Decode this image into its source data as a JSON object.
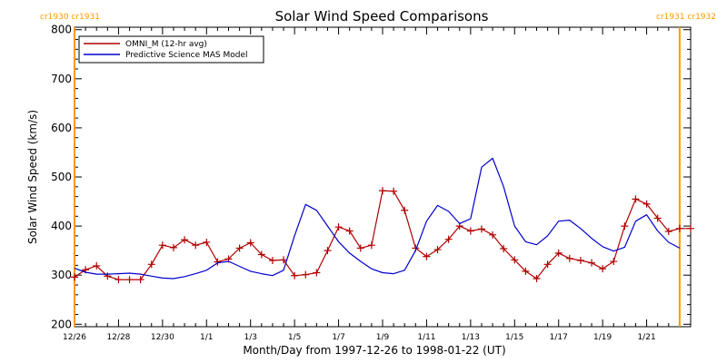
{
  "chart_data": {
    "type": "line",
    "title": "Solar Wind Speed Comparisons",
    "xlabel": "Month/Day from 1997-12-26 to 1998-01-22 (UT)",
    "ylabel": "Solar Wind Speed (km/s)",
    "ylim": [
      195,
      805
    ],
    "yticks": [
      200,
      300,
      400,
      500,
      600,
      700,
      800
    ],
    "xlim": [
      "1997-12-26T00:00",
      "1998-01-23T00:00"
    ],
    "xticks": [
      {
        "date": "1997-12-26",
        "label": "12/26"
      },
      {
        "date": "1997-12-28",
        "label": "12/28"
      },
      {
        "date": "1997-12-30",
        "label": "12/30"
      },
      {
        "date": "1998-01-01",
        "label": "1/1"
      },
      {
        "date": "1998-01-03",
        "label": "1/3"
      },
      {
        "date": "1998-01-05",
        "label": "1/5"
      },
      {
        "date": "1998-01-07",
        "label": "1/7"
      },
      {
        "date": "1998-01-09",
        "label": "1/9"
      },
      {
        "date": "1998-01-11",
        "label": "1/11"
      },
      {
        "date": "1998-01-13",
        "label": "1/13"
      },
      {
        "date": "1998-01-15",
        "label": "1/15"
      },
      {
        "date": "1998-01-17",
        "label": "1/17"
      },
      {
        "date": "1998-01-19",
        "label": "1/19"
      },
      {
        "date": "1998-01-21",
        "label": "1/21"
      }
    ],
    "carrington_markers": [
      {
        "date": "1997-12-26T00:00",
        "label": "cr1930 cr1931",
        "side": "left",
        "color": "#ff9900"
      },
      {
        "date": "1998-01-22T12:00",
        "label": "cr1931 cr1932",
        "side": "right",
        "color": "#ff9900"
      }
    ],
    "legend_position": "top-left",
    "series": [
      {
        "name": "OMNI_M (12-hr avg)",
        "color": "#b00000",
        "marker": "plus",
        "x": [
          "1997-12-26T00:00",
          "1997-12-26T12:00",
          "1997-12-27T00:00",
          "1997-12-27T12:00",
          "1997-12-28T00:00",
          "1997-12-28T12:00",
          "1997-12-29T00:00",
          "1997-12-29T12:00",
          "1997-12-30T00:00",
          "1997-12-30T12:00",
          "1997-12-31T00:00",
          "1997-12-31T12:00",
          "1998-01-01T00:00",
          "1998-01-01T12:00",
          "1998-01-02T00:00",
          "1998-01-02T12:00",
          "1998-01-03T00:00",
          "1998-01-03T12:00",
          "1998-01-04T00:00",
          "1998-01-04T12:00",
          "1998-01-05T00:00",
          "1998-01-05T12:00",
          "1998-01-06T00:00",
          "1998-01-06T12:00",
          "1998-01-07T00:00",
          "1998-01-07T12:00",
          "1998-01-08T00:00",
          "1998-01-08T12:00",
          "1998-01-09T00:00",
          "1998-01-09T12:00",
          "1998-01-10T00:00",
          "1998-01-10T12:00",
          "1998-01-11T00:00",
          "1998-01-11T12:00",
          "1998-01-12T00:00",
          "1998-01-12T12:00",
          "1998-01-13T00:00",
          "1998-01-13T12:00",
          "1998-01-14T00:00",
          "1998-01-14T12:00",
          "1998-01-15T00:00",
          "1998-01-15T12:00",
          "1998-01-16T00:00",
          "1998-01-16T12:00",
          "1998-01-17T00:00",
          "1998-01-17T12:00",
          "1998-01-18T00:00",
          "1998-01-18T12:00",
          "1998-01-19T00:00",
          "1998-01-19T12:00",
          "1998-01-20T00:00",
          "1998-01-20T12:00",
          "1998-01-21T00:00",
          "1998-01-21T12:00",
          "1998-01-22T00:00",
          "1998-01-22T12:00",
          "1998-01-23T00:00"
        ],
        "y": [
          296,
          311,
          319,
          298,
          291,
          291,
          291,
          322,
          361,
          356,
          372,
          361,
          367,
          327,
          333,
          355,
          366,
          342,
          330,
          331,
          299,
          301,
          305,
          350,
          398,
          390,
          355,
          361,
          472,
          471,
          432,
          355,
          338,
          352,
          373,
          400,
          390,
          394,
          382,
          354,
          331,
          308,
          293,
          322,
          345,
          334,
          330,
          325,
          313,
          328,
          400,
          455,
          445,
          416,
          389,
          395,
          395
        ]
      },
      {
        "name": "Predictive Science MAS Model",
        "color": "#0000cc",
        "marker": "none",
        "x": [
          "1997-12-26T00:00",
          "1997-12-26T12:00",
          "1997-12-27T00:00",
          "1997-12-27T12:00",
          "1997-12-28T00:00",
          "1997-12-28T12:00",
          "1997-12-29T00:00",
          "1997-12-29T12:00",
          "1997-12-30T00:00",
          "1997-12-30T12:00",
          "1997-12-31T00:00",
          "1997-12-31T12:00",
          "1998-01-01T00:00",
          "1998-01-01T12:00",
          "1998-01-02T00:00",
          "1998-01-02T12:00",
          "1998-01-03T00:00",
          "1998-01-03T12:00",
          "1998-01-04T00:00",
          "1998-01-04T12:00",
          "1998-01-05T00:00",
          "1998-01-05T12:00",
          "1998-01-06T00:00",
          "1998-01-06T12:00",
          "1998-01-07T00:00",
          "1998-01-07T12:00",
          "1998-01-08T00:00",
          "1998-01-08T12:00",
          "1998-01-09T00:00",
          "1998-01-09T12:00",
          "1998-01-10T00:00",
          "1998-01-10T12:00",
          "1998-01-11T00:00",
          "1998-01-11T12:00",
          "1998-01-12T00:00",
          "1998-01-12T12:00",
          "1998-01-13T00:00",
          "1998-01-13T12:00",
          "1998-01-14T00:00",
          "1998-01-14T12:00",
          "1998-01-15T00:00",
          "1998-01-15T12:00",
          "1998-01-16T00:00",
          "1998-01-16T12:00",
          "1998-01-17T00:00",
          "1998-01-17T12:00",
          "1998-01-18T00:00",
          "1998-01-18T12:00",
          "1998-01-19T00:00",
          "1998-01-19T12:00",
          "1998-01-20T00:00",
          "1998-01-20T12:00",
          "1998-01-21T00:00",
          "1998-01-21T12:00",
          "1998-01-22T00:00",
          "1998-01-22T12:00"
        ],
        "y": [
          314,
          306,
          302,
          302,
          303,
          304,
          302,
          298,
          294,
          293,
          297,
          303,
          310,
          325,
          328,
          318,
          308,
          303,
          299,
          310,
          380,
          444,
          432,
          400,
          368,
          345,
          328,
          313,
          305,
          303,
          310,
          350,
          410,
          442,
          430,
          405,
          415,
          520,
          538,
          480,
          400,
          368,
          362,
          380,
          410,
          412,
          395,
          375,
          358,
          349,
          357,
          410,
          423,
          390,
          367,
          355
        ]
      }
    ]
  }
}
